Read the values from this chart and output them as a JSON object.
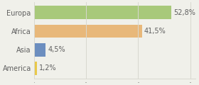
{
  "categories": [
    "Europa",
    "Africa",
    "Asia",
    "America"
  ],
  "values": [
    52.8,
    41.5,
    4.5,
    1.2
  ],
  "labels": [
    "52,8%",
    "41,5%",
    "4,5%",
    "1,2%"
  ],
  "bar_colors": [
    "#a8c97a",
    "#e8b87a",
    "#6c8ebf",
    "#e8c84a"
  ],
  "background_color": "#f0f0ea",
  "xlim": [
    0,
    62
  ],
  "label_fontsize": 7.0,
  "category_fontsize": 7.0,
  "bar_height": 0.72,
  "grid_color": "#d8d8d0",
  "text_color": "#606060"
}
